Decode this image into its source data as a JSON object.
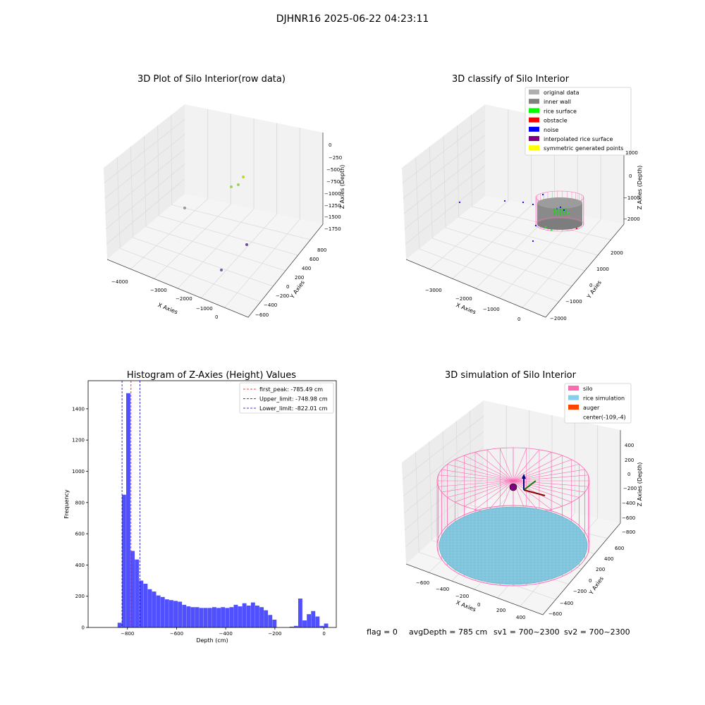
{
  "figure": {
    "suptitle": "DJHNR16 2025-06-22 04:23:11",
    "footer": {
      "flag": "flag = 0",
      "avg_depth": "avgDepth = 785 cm",
      "sv1": "sv1 = 700~2300",
      "sv2": "sv2 = 700~2300"
    }
  },
  "chart_data": [
    {
      "type": "scatter",
      "projection": "3d",
      "title": "3D Plot of Silo Interior(row data)",
      "xlabel": "X Axies",
      "ylabel": "Y Axies",
      "zlabel": "Z Axies (Depth)",
      "x_ticks": [
        "−4000",
        "−3000",
        "−2000",
        "−1000",
        "0"
      ],
      "y_ticks": [
        "−600",
        "−400",
        "−200",
        "0",
        "200",
        "400",
        "600",
        "800"
      ],
      "z_ticks": [
        "0",
        "−250",
        "−500",
        "−750",
        "−1000",
        "−1250",
        "−1500",
        "−1750"
      ],
      "colormap": "viridis",
      "description_series": [
        {
          "kind": "ring-wall",
          "z_range": [
            -1900,
            -200
          ],
          "color_low": "#3fbf70",
          "color_high": "#e0e52a"
        },
        {
          "kind": "outliers",
          "points": [
            [
              -3900,
              500,
              -1500
            ],
            [
              -1300,
              -300,
              -1300
            ],
            [
              -200,
              -500,
              -1600
            ]
          ]
        }
      ]
    },
    {
      "type": "scatter",
      "projection": "3d",
      "title": "3D classify of Silo Interior",
      "xlabel": "X Axies",
      "ylabel": "Y Axies",
      "zlabel": "Z Axies (Depth)",
      "x_ticks": [
        "−3000",
        "−2000",
        "−1000",
        "0"
      ],
      "y_ticks": [
        "−2000",
        "−1000",
        "0",
        "1000",
        "2000"
      ],
      "z_ticks": [
        "1000",
        "0",
        "−1000",
        "−2000"
      ],
      "legend": {
        "position": "upper-right",
        "entries": [
          {
            "label": "original data",
            "color": "#b0b0b0"
          },
          {
            "label": "inner wall",
            "color": "#808080"
          },
          {
            "label": "rice surface",
            "color": "#00ff00"
          },
          {
            "label": "obstacle",
            "color": "#ff0000"
          },
          {
            "label": "noise",
            "color": "#0000ff"
          },
          {
            "label": "interpolated rice surface",
            "color": "#800080"
          },
          {
            "label": "symmetric generated points",
            "color": "#ffff00"
          }
        ]
      }
    },
    {
      "type": "bar",
      "title": "Histogram of Z-Axies (Height) Values",
      "xlabel": "Depth (cm)",
      "ylabel": "Frequency",
      "xlim": [
        -960,
        50
      ],
      "ylim": [
        0,
        1580
      ],
      "x_ticks": [
        -800,
        -600,
        -400,
        -200,
        0
      ],
      "y_ticks": [
        0,
        200,
        400,
        600,
        800,
        1000,
        1200,
        1400
      ],
      "bar_color": "#5050ff",
      "bin_width": 17.5,
      "bins": [
        {
          "x": -840,
          "count": 30
        },
        {
          "x": -822.5,
          "count": 850
        },
        {
          "x": -805,
          "count": 1500
        },
        {
          "x": -787.5,
          "count": 490
        },
        {
          "x": -770,
          "count": 435
        },
        {
          "x": -752.5,
          "count": 300
        },
        {
          "x": -735,
          "count": 280
        },
        {
          "x": -717.5,
          "count": 245
        },
        {
          "x": -700,
          "count": 230
        },
        {
          "x": -682.5,
          "count": 205
        },
        {
          "x": -665,
          "count": 195
        },
        {
          "x": -647.5,
          "count": 180
        },
        {
          "x": -630,
          "count": 175
        },
        {
          "x": -612.5,
          "count": 170
        },
        {
          "x": -595,
          "count": 165
        },
        {
          "x": -577.5,
          "count": 145
        },
        {
          "x": -560,
          "count": 135
        },
        {
          "x": -542.5,
          "count": 130
        },
        {
          "x": -525,
          "count": 130
        },
        {
          "x": -507.5,
          "count": 125
        },
        {
          "x": -490,
          "count": 125
        },
        {
          "x": -472.5,
          "count": 125
        },
        {
          "x": -455,
          "count": 130
        },
        {
          "x": -437.5,
          "count": 125
        },
        {
          "x": -420,
          "count": 130
        },
        {
          "x": -402.5,
          "count": 125
        },
        {
          "x": -385,
          "count": 130
        },
        {
          "x": -367.5,
          "count": 145
        },
        {
          "x": -350,
          "count": 135
        },
        {
          "x": -332.5,
          "count": 155
        },
        {
          "x": -315,
          "count": 140
        },
        {
          "x": -297.5,
          "count": 160
        },
        {
          "x": -280,
          "count": 140
        },
        {
          "x": -262.5,
          "count": 130
        },
        {
          "x": -245,
          "count": 110
        },
        {
          "x": -227.5,
          "count": 80
        },
        {
          "x": -210,
          "count": 50
        },
        {
          "x": -140,
          "count": 5
        },
        {
          "x": -122.5,
          "count": 10
        },
        {
          "x": -105,
          "count": 185
        },
        {
          "x": -87.5,
          "count": 45
        },
        {
          "x": -70,
          "count": 85
        },
        {
          "x": -52.5,
          "count": 105
        },
        {
          "x": -35,
          "count": 70
        },
        {
          "x": -17.5,
          "count": 10
        },
        {
          "x": 0,
          "count": 25
        }
      ],
      "vlines": [
        {
          "label": "first_peak: -785.49 cm",
          "x": -785.49,
          "color": "#ff0000"
        },
        {
          "label": "Upper_limit: -748.98 cm",
          "x": -748.98,
          "color": "#0000cc"
        },
        {
          "label": "Lower_limit: -822.01 cm",
          "x": -822.01,
          "color": "#0000cc"
        }
      ],
      "legend": {
        "position": "upper-right"
      }
    },
    {
      "type": "surface",
      "projection": "3d",
      "title": "3D simulation of Silo Interior",
      "xlabel": "X Axies",
      "ylabel": "Y Axies",
      "zlabel": "Z Axies (Depth)",
      "x_ticks": [
        "−600",
        "−400",
        "−200",
        "0",
        "200",
        "400"
      ],
      "y_ticks": [
        "−600",
        "−400",
        "−200",
        "0",
        "200",
        "400",
        "600"
      ],
      "z_ticks": [
        "400",
        "200",
        "0",
        "−200",
        "−400",
        "−600",
        "−800"
      ],
      "legend": {
        "position": "upper-right",
        "entries": [
          {
            "label": "silo",
            "color": "#ff69b4"
          },
          {
            "label": "rice simulation",
            "color": "#87ceeb"
          },
          {
            "label": "auger",
            "color": "#ff4500"
          },
          {
            "label": "center(-109,-4)",
            "color": ""
          }
        ]
      }
    }
  ]
}
